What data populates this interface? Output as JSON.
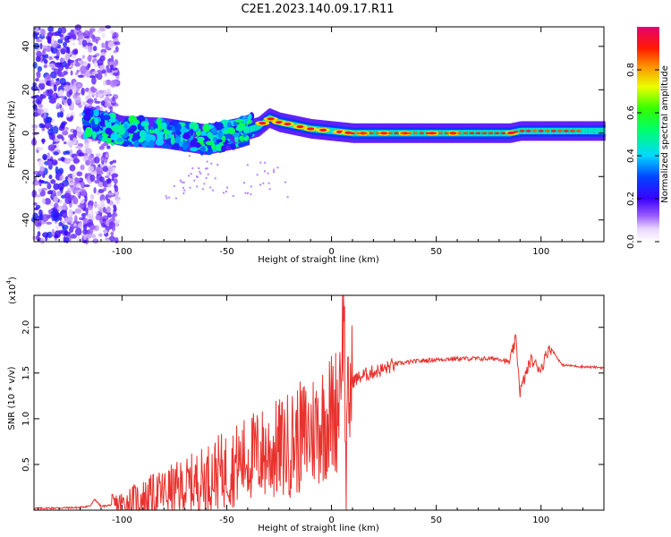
{
  "title": "C2E1.2023.140.09.17.R11",
  "colors": {
    "signal": "#e8322e",
    "axis": "#000000"
  },
  "chart_data": [
    {
      "type": "heatmap",
      "name": "spectrogram",
      "xlabel": "Height of straight line (km)",
      "ylabel": "Frequency (Hz)",
      "xlim": [
        -142,
        130
      ],
      "ylim": [
        -50,
        49
      ],
      "xticks": [
        -100,
        -50,
        0,
        50,
        100
      ],
      "xtick_labels": [
        "-100",
        "-50",
        "0",
        "50",
        "100"
      ],
      "yticks": [
        -40,
        -20,
        0,
        20,
        40
      ],
      "ytick_labels": [
        "-40",
        "-20",
        "0",
        "20",
        "40"
      ],
      "ridge": {
        "description_points_x": [
          -118,
          -100,
          -80,
          -60,
          -45,
          -35,
          -30,
          -25,
          -20,
          -10,
          0,
          10,
          20,
          50,
          85,
          90,
          100,
          130
        ],
        "frequency_hz": [
          5,
          1,
          0,
          -3,
          0,
          3,
          7,
          5,
          4,
          2,
          1,
          0,
          0,
          0,
          0,
          1,
          1,
          1
        ]
      },
      "colorbar": {
        "label": "Normalized spectral amplitude",
        "range": [
          0,
          1
        ],
        "ticks": [
          0.0,
          0.2,
          0.4,
          0.6,
          0.8
        ],
        "tick_labels": [
          "0.0",
          "0.2",
          "0.4",
          "0.6",
          "0.8"
        ]
      }
    },
    {
      "type": "line",
      "name": "snr",
      "xlabel": "Height of straight line (km)",
      "ylabel": "SNR (10 * v/v)",
      "multiplier_label": "(x10",
      "multiplier_exp": "4",
      "xlim": [
        -142,
        130
      ],
      "ylim": [
        0,
        2.35
      ],
      "xticks": [
        -100,
        -50,
        0,
        50,
        100
      ],
      "xtick_labels": [
        "-100",
        "-50",
        "0",
        "50",
        "100"
      ],
      "yticks": [
        0.5,
        1.0,
        1.5,
        2.0
      ],
      "ytick_labels": [
        "0.5",
        "1.0",
        "1.5",
        "2.0"
      ],
      "series": [
        {
          "x": [
            -142,
            -120,
            -115,
            -113,
            -110,
            -100,
            -90,
            -80,
            -70,
            -60,
            -55,
            -50,
            -45,
            -40,
            -35,
            -30,
            -25,
            -20,
            -15,
            -10,
            -5,
            0,
            3,
            6,
            7,
            8,
            10,
            15,
            20,
            25,
            30,
            40,
            50,
            60,
            70,
            80,
            85,
            88,
            90,
            95,
            100,
            104,
            110,
            120,
            130
          ],
          "y": [
            0.02,
            0.03,
            0.05,
            0.12,
            0.04,
            0.08,
            0.15,
            0.22,
            0.28,
            0.38,
            0.45,
            0.48,
            0.55,
            0.62,
            0.66,
            0.68,
            0.72,
            0.78,
            0.85,
            0.92,
            1.02,
            1.12,
            1.2,
            2.35,
            0.25,
            1.3,
            1.42,
            1.48,
            1.52,
            1.55,
            1.6,
            1.63,
            1.65,
            1.66,
            1.66,
            1.66,
            1.62,
            1.88,
            1.3,
            1.65,
            1.55,
            1.8,
            1.59,
            1.57,
            1.56
          ]
        }
      ]
    }
  ]
}
